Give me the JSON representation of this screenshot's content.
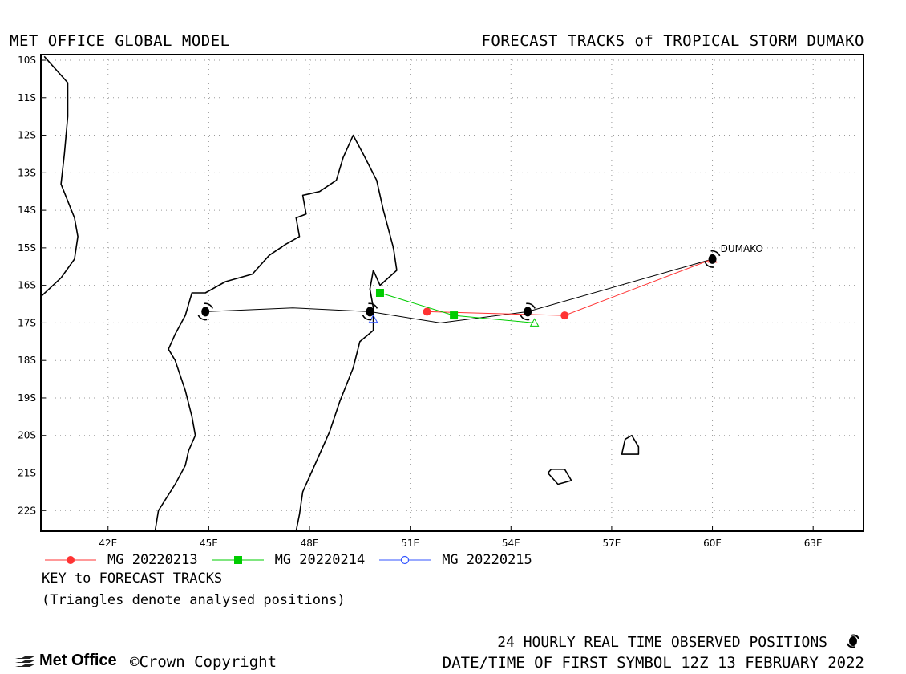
{
  "header": {
    "left_title": "MET OFFICE GLOBAL MODEL",
    "right_title": "FORECAST TRACKS of TROPICAL STORM DUMAKO"
  },
  "chart_data": {
    "type": "map",
    "xlim": [
      40.0,
      64.5
    ],
    "ylim": [
      -22.55,
      -9.85
    ],
    "x_ticks": [
      {
        "value": 42,
        "label": "42E"
      },
      {
        "value": 45,
        "label": "45E"
      },
      {
        "value": 48,
        "label": "48E"
      },
      {
        "value": 51,
        "label": "51E"
      },
      {
        "value": 54,
        "label": "54E"
      },
      {
        "value": 57,
        "label": "57E"
      },
      {
        "value": 60,
        "label": "60E"
      },
      {
        "value": 63,
        "label": "63E"
      }
    ],
    "y_ticks": [
      {
        "value": -10,
        "label": "10S"
      },
      {
        "value": -11,
        "label": "11S"
      },
      {
        "value": -12,
        "label": "12S"
      },
      {
        "value": -13,
        "label": "13S"
      },
      {
        "value": -14,
        "label": "14S"
      },
      {
        "value": -15,
        "label": "15S"
      },
      {
        "value": -16,
        "label": "16S"
      },
      {
        "value": -17,
        "label": "17S"
      },
      {
        "value": -18,
        "label": "18S"
      },
      {
        "value": -19,
        "label": "19S"
      },
      {
        "value": -20,
        "label": "20S"
      },
      {
        "value": -21,
        "label": "21S"
      },
      {
        "value": -22,
        "label": "22S"
      }
    ],
    "grid": true,
    "storm_label": "DUMAKO",
    "observed_track": [
      [
        60.0,
        -15.3
      ],
      [
        54.5,
        -16.7
      ],
      [
        51.9,
        -17.0
      ],
      [
        49.8,
        -16.7
      ],
      [
        47.5,
        -16.6
      ],
      [
        44.9,
        -16.7
      ]
    ],
    "observed_symbols": [
      [
        60.0,
        -15.3
      ],
      [
        54.5,
        -16.7
      ],
      [
        49.8,
        -16.7
      ],
      [
        44.9,
        -16.7
      ]
    ],
    "series": [
      {
        "name": "MG 20220213",
        "color": "#ff3333",
        "marker": "circle-filled",
        "points": [
          [
            60.0,
            -15.3
          ],
          [
            55.6,
            -16.8
          ],
          [
            51.5,
            -16.7
          ]
        ],
        "analysed": [
          [
            60.0,
            -15.3
          ]
        ]
      },
      {
        "name": "MG 20220214",
        "color": "#00cc00",
        "marker": "square-filled",
        "points": [
          [
            54.7,
            -17.0
          ],
          [
            52.3,
            -16.8
          ],
          [
            50.1,
            -16.2
          ]
        ],
        "analysed": [
          [
            54.7,
            -17.0
          ]
        ]
      },
      {
        "name": "MG 20220215",
        "color": "#3355ff",
        "marker": "circle-open",
        "points": [
          [
            49.9,
            -16.9
          ]
        ],
        "analysed": [
          [
            49.9,
            -16.9
          ]
        ]
      }
    ],
    "coastlines": {
      "africa": [
        [
          40.1,
          -9.9
        ],
        [
          40.8,
          -10.6
        ],
        [
          40.8,
          -11.5
        ],
        [
          40.7,
          -12.5
        ],
        [
          40.6,
          -13.3
        ],
        [
          41.0,
          -14.2
        ],
        [
          41.1,
          -14.7
        ],
        [
          41.0,
          -15.3
        ],
        [
          40.6,
          -15.8
        ],
        [
          40.0,
          -16.3
        ]
      ],
      "africa_south": [
        [
          43.4,
          -22.55
        ],
        [
          43.5,
          -22.0
        ],
        [
          44.0,
          -21.3
        ],
        [
          44.3,
          -20.8
        ],
        [
          44.4,
          -20.4
        ],
        [
          44.6,
          -20.0
        ],
        [
          44.5,
          -19.5
        ],
        [
          44.3,
          -18.8
        ],
        [
          44.0,
          -18.0
        ],
        [
          43.8,
          -17.7
        ],
        [
          44.0,
          -17.3
        ],
        [
          44.3,
          -16.8
        ],
        [
          44.5,
          -16.2
        ],
        [
          44.9,
          -16.2
        ],
        [
          45.5,
          -15.9
        ],
        [
          46.3,
          -15.7
        ],
        [
          46.8,
          -15.2
        ],
        [
          47.3,
          -14.9
        ],
        [
          47.7,
          -14.7
        ],
        [
          47.6,
          -14.2
        ],
        [
          47.9,
          -14.1
        ],
        [
          47.8,
          -13.6
        ],
        [
          48.3,
          -13.5
        ],
        [
          48.8,
          -13.2
        ],
        [
          49.0,
          -12.6
        ],
        [
          49.3,
          -12.0
        ],
        [
          49.6,
          -12.5
        ],
        [
          50.0,
          -13.2
        ],
        [
          50.2,
          -14.0
        ],
        [
          50.5,
          -15.0
        ],
        [
          50.6,
          -15.6
        ],
        [
          50.1,
          -16.0
        ],
        [
          49.9,
          -15.6
        ],
        [
          49.8,
          -16.1
        ],
        [
          49.9,
          -16.6
        ],
        [
          49.9,
          -17.2
        ],
        [
          49.5,
          -17.5
        ],
        [
          49.3,
          -18.2
        ],
        [
          48.9,
          -19.1
        ],
        [
          48.6,
          -19.9
        ],
        [
          48.2,
          -20.7
        ],
        [
          47.8,
          -21.5
        ],
        [
          47.7,
          -22.1
        ],
        [
          47.6,
          -22.55
        ]
      ],
      "reunion": [
        [
          55.2,
          -20.9
        ],
        [
          55.6,
          -20.9
        ],
        [
          55.8,
          -21.2
        ],
        [
          55.4,
          -21.3
        ],
        [
          55.1,
          -21.0
        ],
        [
          55.2,
          -20.9
        ]
      ],
      "mauritius": [
        [
          57.4,
          -20.1
        ],
        [
          57.6,
          -20.0
        ],
        [
          57.8,
          -20.3
        ],
        [
          57.8,
          -20.5
        ],
        [
          57.3,
          -20.5
        ],
        [
          57.4,
          -20.1
        ]
      ]
    }
  },
  "legend": {
    "entries": [
      {
        "label": "MG 20220213",
        "color": "#ff3333",
        "marker": "circle-filled"
      },
      {
        "label": "MG 20220214",
        "color": "#00cc00",
        "marker": "square-filled"
      },
      {
        "label": "MG 20220215",
        "color": "#3355ff",
        "marker": "circle-open"
      }
    ],
    "key_title": "KEY to FORECAST TRACKS",
    "key_note": "(Triangles denote analysed positions)"
  },
  "footer": {
    "observed_text": "24 HOURLY REAL TIME OBSERVED POSITIONS",
    "date_text": "DATE/TIME OF FIRST SYMBOL 12Z 13 FEBRUARY 2022",
    "logo_text": "Met Office",
    "copyright_text": "©Crown Copyright"
  }
}
